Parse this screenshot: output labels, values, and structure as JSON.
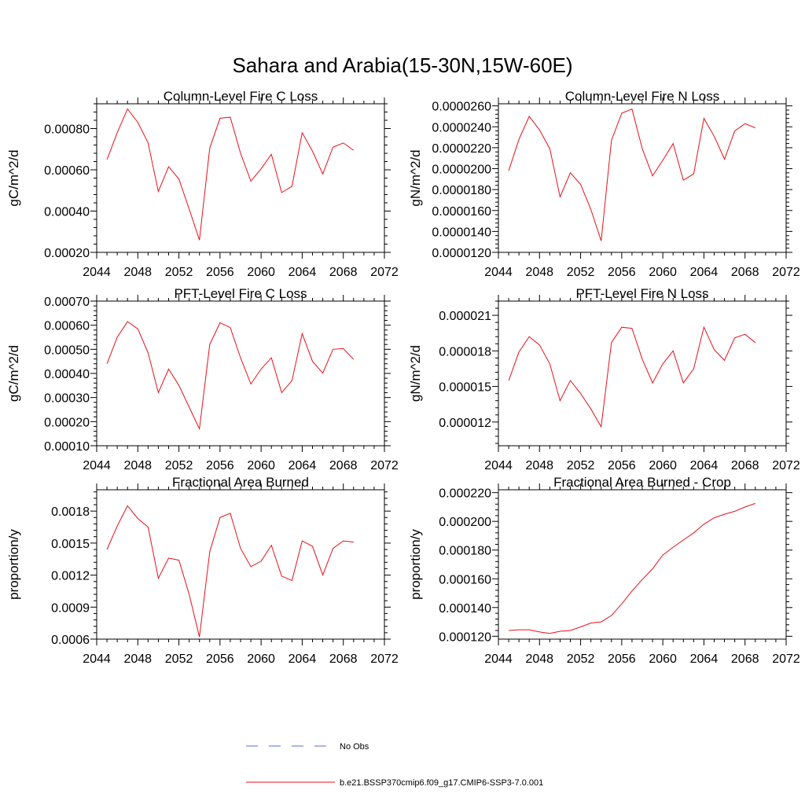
{
  "figure": {
    "title": "Sahara and Arabia(15-30N,15W-60E)"
  },
  "legend": {
    "entries": [
      {
        "label": "No Obs",
        "style": "dashed",
        "color": "#5a6fc4"
      },
      {
        "label": "b.e21.BSSP370cmip6.f09_g17.CMIP6-SSP3-7.0.001",
        "style": "solid",
        "color": "#e8101a"
      }
    ]
  },
  "chart_data": [
    {
      "type": "line",
      "title": "Column-Level Fire C Loss",
      "ylabel": "gC/m^2/d",
      "xlim": [
        2044,
        2072
      ],
      "ylim": [
        0.0002,
        0.00092
      ],
      "xticks": [
        2044,
        2048,
        2052,
        2056,
        2060,
        2064,
        2068,
        2072
      ],
      "xtick_labels": [
        "2044",
        "2048",
        "2052",
        "2056",
        "2060",
        "2064",
        "2068",
        "2072"
      ],
      "yticks": [
        0.0002,
        0.0004,
        0.0006,
        0.0008
      ],
      "ytick_labels": [
        "0.00020",
        "0.00040",
        "0.00060",
        "0.00080"
      ],
      "color": "#e8101a",
      "x": [
        2045,
        2046,
        2047,
        2048,
        2049,
        2050,
        2051,
        2052,
        2053,
        2054,
        2055,
        2056,
        2057,
        2058,
        2059,
        2060,
        2061,
        2062,
        2063,
        2064,
        2065,
        2066,
        2067,
        2068,
        2069
      ],
      "y": [
        0.00065,
        0.00078,
        0.000895,
        0.00083,
        0.00073,
        0.000495,
        0.000615,
        0.000555,
        0.00041,
        0.00026,
        0.000705,
        0.00085,
        0.000855,
        0.00068,
        0.000545,
        0.000605,
        0.000675,
        0.00049,
        0.00052,
        0.00078,
        0.00069,
        0.00058,
        0.00071,
        0.00073,
        0.000695
      ]
    },
    {
      "type": "line",
      "title": "Column-Level Fire N Loss",
      "ylabel": "gN/m^2/d",
      "xlim": [
        2044,
        2072
      ],
      "ylim": [
        1.2e-05,
        2.62e-05
      ],
      "xticks": [
        2044,
        2048,
        2052,
        2056,
        2060,
        2064,
        2068,
        2072
      ],
      "xtick_labels": [
        "2044",
        "2048",
        "2052",
        "2056",
        "2060",
        "2064",
        "2068",
        "2072"
      ],
      "yticks": [
        1.2e-05,
        1.4e-05,
        1.6e-05,
        1.8e-05,
        2e-05,
        2.2e-05,
        2.4e-05,
        2.6e-05
      ],
      "ytick_labels": [
        "0.0000120",
        "0.0000140",
        "0.0000160",
        "0.0000180",
        "0.0000200",
        "0.0000220",
        "0.0000240",
        "0.0000260"
      ],
      "color": "#e8101a",
      "x": [
        2045,
        2046,
        2047,
        2048,
        2049,
        2050,
        2051,
        2052,
        2053,
        2054,
        2055,
        2056,
        2057,
        2058,
        2059,
        2060,
        2061,
        2062,
        2063,
        2064,
        2065,
        2066,
        2067,
        2068,
        2069
      ],
      "y": [
        1.98e-05,
        2.28e-05,
        2.5e-05,
        2.37e-05,
        2.19e-05,
        1.73e-05,
        1.96e-05,
        1.85e-05,
        1.61e-05,
        1.31e-05,
        2.27e-05,
        2.53e-05,
        2.57e-05,
        2.19e-05,
        1.93e-05,
        2.08e-05,
        2.24e-05,
        1.89e-05,
        1.95e-05,
        2.48e-05,
        2.31e-05,
        2.09e-05,
        2.36e-05,
        2.43e-05,
        2.39e-05
      ]
    },
    {
      "type": "line",
      "title": "PFT-Level Fire C Loss",
      "ylabel": "gC/m^2/d",
      "xlim": [
        2044,
        2072
      ],
      "ylim": [
        0.0001,
        0.0007
      ],
      "xticks": [
        2044,
        2048,
        2052,
        2056,
        2060,
        2064,
        2068,
        2072
      ],
      "xtick_labels": [
        "2044",
        "2048",
        "2052",
        "2056",
        "2060",
        "2064",
        "2068",
        "2072"
      ],
      "yticks": [
        0.0001,
        0.0002,
        0.0003,
        0.0004,
        0.0005,
        0.0006,
        0.0007
      ],
      "ytick_labels": [
        "0.00010",
        "0.00020",
        "0.00030",
        "0.00040",
        "0.00050",
        "0.00060",
        "0.00070"
      ],
      "color": "#e8101a",
      "x": [
        2045,
        2046,
        2047,
        2048,
        2049,
        2050,
        2051,
        2052,
        2053,
        2054,
        2055,
        2056,
        2057,
        2058,
        2059,
        2060,
        2061,
        2062,
        2063,
        2064,
        2065,
        2066,
        2067,
        2068,
        2069
      ],
      "y": [
        0.00044,
        0.00055,
        0.000615,
        0.000585,
        0.000485,
        0.00032,
        0.000418,
        0.00035,
        0.00026,
        0.00017,
        0.00052,
        0.00061,
        0.00059,
        0.000465,
        0.000356,
        0.000418,
        0.000465,
        0.00032,
        0.00037,
        0.000565,
        0.00045,
        0.000402,
        0.0005,
        0.000503,
        0.000458
      ]
    },
    {
      "type": "line",
      "title": "PFT-Level Fire N Loss",
      "ylabel": "gN/m^2/d",
      "xlim": [
        2044,
        2072
      ],
      "ylim": [
        1e-05,
        2.22e-05
      ],
      "xticks": [
        2044,
        2048,
        2052,
        2056,
        2060,
        2064,
        2068,
        2072
      ],
      "xtick_labels": [
        "2044",
        "2048",
        "2052",
        "2056",
        "2060",
        "2064",
        "2068",
        "2072"
      ],
      "yticks": [
        1.2e-05,
        1.5e-05,
        1.8e-05,
        2.1e-05
      ],
      "ytick_labels": [
        "0.000012",
        "0.000015",
        "0.000018",
        "0.000021"
      ],
      "color": "#e8101a",
      "x": [
        2045,
        2046,
        2047,
        2048,
        2049,
        2050,
        2051,
        2052,
        2053,
        2054,
        2055,
        2056,
        2057,
        2058,
        2059,
        2060,
        2061,
        2062,
        2063,
        2064,
        2065,
        2066,
        2067,
        2068,
        2069
      ],
      "y": [
        1.55e-05,
        1.79e-05,
        1.92e-05,
        1.85e-05,
        1.69e-05,
        1.38e-05,
        1.55e-05,
        1.44e-05,
        1.31e-05,
        1.16e-05,
        1.87e-05,
        2e-05,
        1.99e-05,
        1.73e-05,
        1.53e-05,
        1.69e-05,
        1.8e-05,
        1.53e-05,
        1.65e-05,
        2e-05,
        1.81e-05,
        1.72e-05,
        1.91e-05,
        1.94e-05,
        1.87e-05
      ]
    },
    {
      "type": "line",
      "title": "Fractional Area Burned",
      "ylabel": "proportion/y",
      "xlim": [
        2044,
        2072
      ],
      "ylim": [
        0.0006,
        0.002
      ],
      "xticks": [
        2044,
        2048,
        2052,
        2056,
        2060,
        2064,
        2068,
        2072
      ],
      "xtick_labels": [
        "2044",
        "2048",
        "2052",
        "2056",
        "2060",
        "2064",
        "2068",
        "2072"
      ],
      "yticks": [
        0.0006,
        0.0009,
        0.0012,
        0.0015,
        0.0018
      ],
      "ytick_labels": [
        "0.0006",
        "0.0009",
        "0.0012",
        "0.0015",
        "0.0018"
      ],
      "color": "#e8101a",
      "x": [
        2045,
        2046,
        2047,
        2048,
        2049,
        2050,
        2051,
        2052,
        2053,
        2054,
        2055,
        2056,
        2057,
        2058,
        2059,
        2060,
        2061,
        2062,
        2063,
        2064,
        2065,
        2066,
        2067,
        2068,
        2069
      ],
      "y": [
        0.00144,
        0.00166,
        0.00185,
        0.00173,
        0.00165,
        0.00117,
        0.00136,
        0.00134,
        0.00102,
        0.00062,
        0.00142,
        0.00174,
        0.00178,
        0.00145,
        0.00128,
        0.00133,
        0.00148,
        0.00119,
        0.00115,
        0.00152,
        0.00147,
        0.0012,
        0.00145,
        0.00152,
        0.00151
      ]
    },
    {
      "type": "line",
      "title": "Fractional Area Burned - Crop",
      "ylabel": "proportion/y",
      "xlim": [
        2044,
        2072
      ],
      "ylim": [
        0.000118,
        0.000222
      ],
      "xticks": [
        2044,
        2048,
        2052,
        2056,
        2060,
        2064,
        2068,
        2072
      ],
      "xtick_labels": [
        "2044",
        "2048",
        "2052",
        "2056",
        "2060",
        "2064",
        "2068",
        "2072"
      ],
      "yticks": [
        0.00012,
        0.00014,
        0.00016,
        0.00018,
        0.0002,
        0.00022
      ],
      "ytick_labels": [
        "0.000120",
        "0.000140",
        "0.000160",
        "0.000180",
        "0.000200",
        "0.000220"
      ],
      "color": "#e8101a",
      "x": [
        2045,
        2046,
        2047,
        2048,
        2049,
        2050,
        2051,
        2052,
        2053,
        2054,
        2055,
        2056,
        2057,
        2058,
        2059,
        2060,
        2061,
        2062,
        2063,
        2064,
        2065,
        2066,
        2067,
        2068,
        2069
      ],
      "y": [
        0.000124,
        0.0001245,
        0.0001245,
        0.000123,
        0.000122,
        0.0001235,
        0.000124,
        0.0001265,
        0.0001292,
        0.00013,
        0.0001345,
        0.0001425,
        0.0001515,
        0.0001595,
        0.000167,
        0.0001765,
        0.000182,
        0.000187,
        0.000192,
        0.000198,
        0.0002025,
        0.000205,
        0.000207,
        0.00021,
        0.0002125
      ]
    }
  ]
}
